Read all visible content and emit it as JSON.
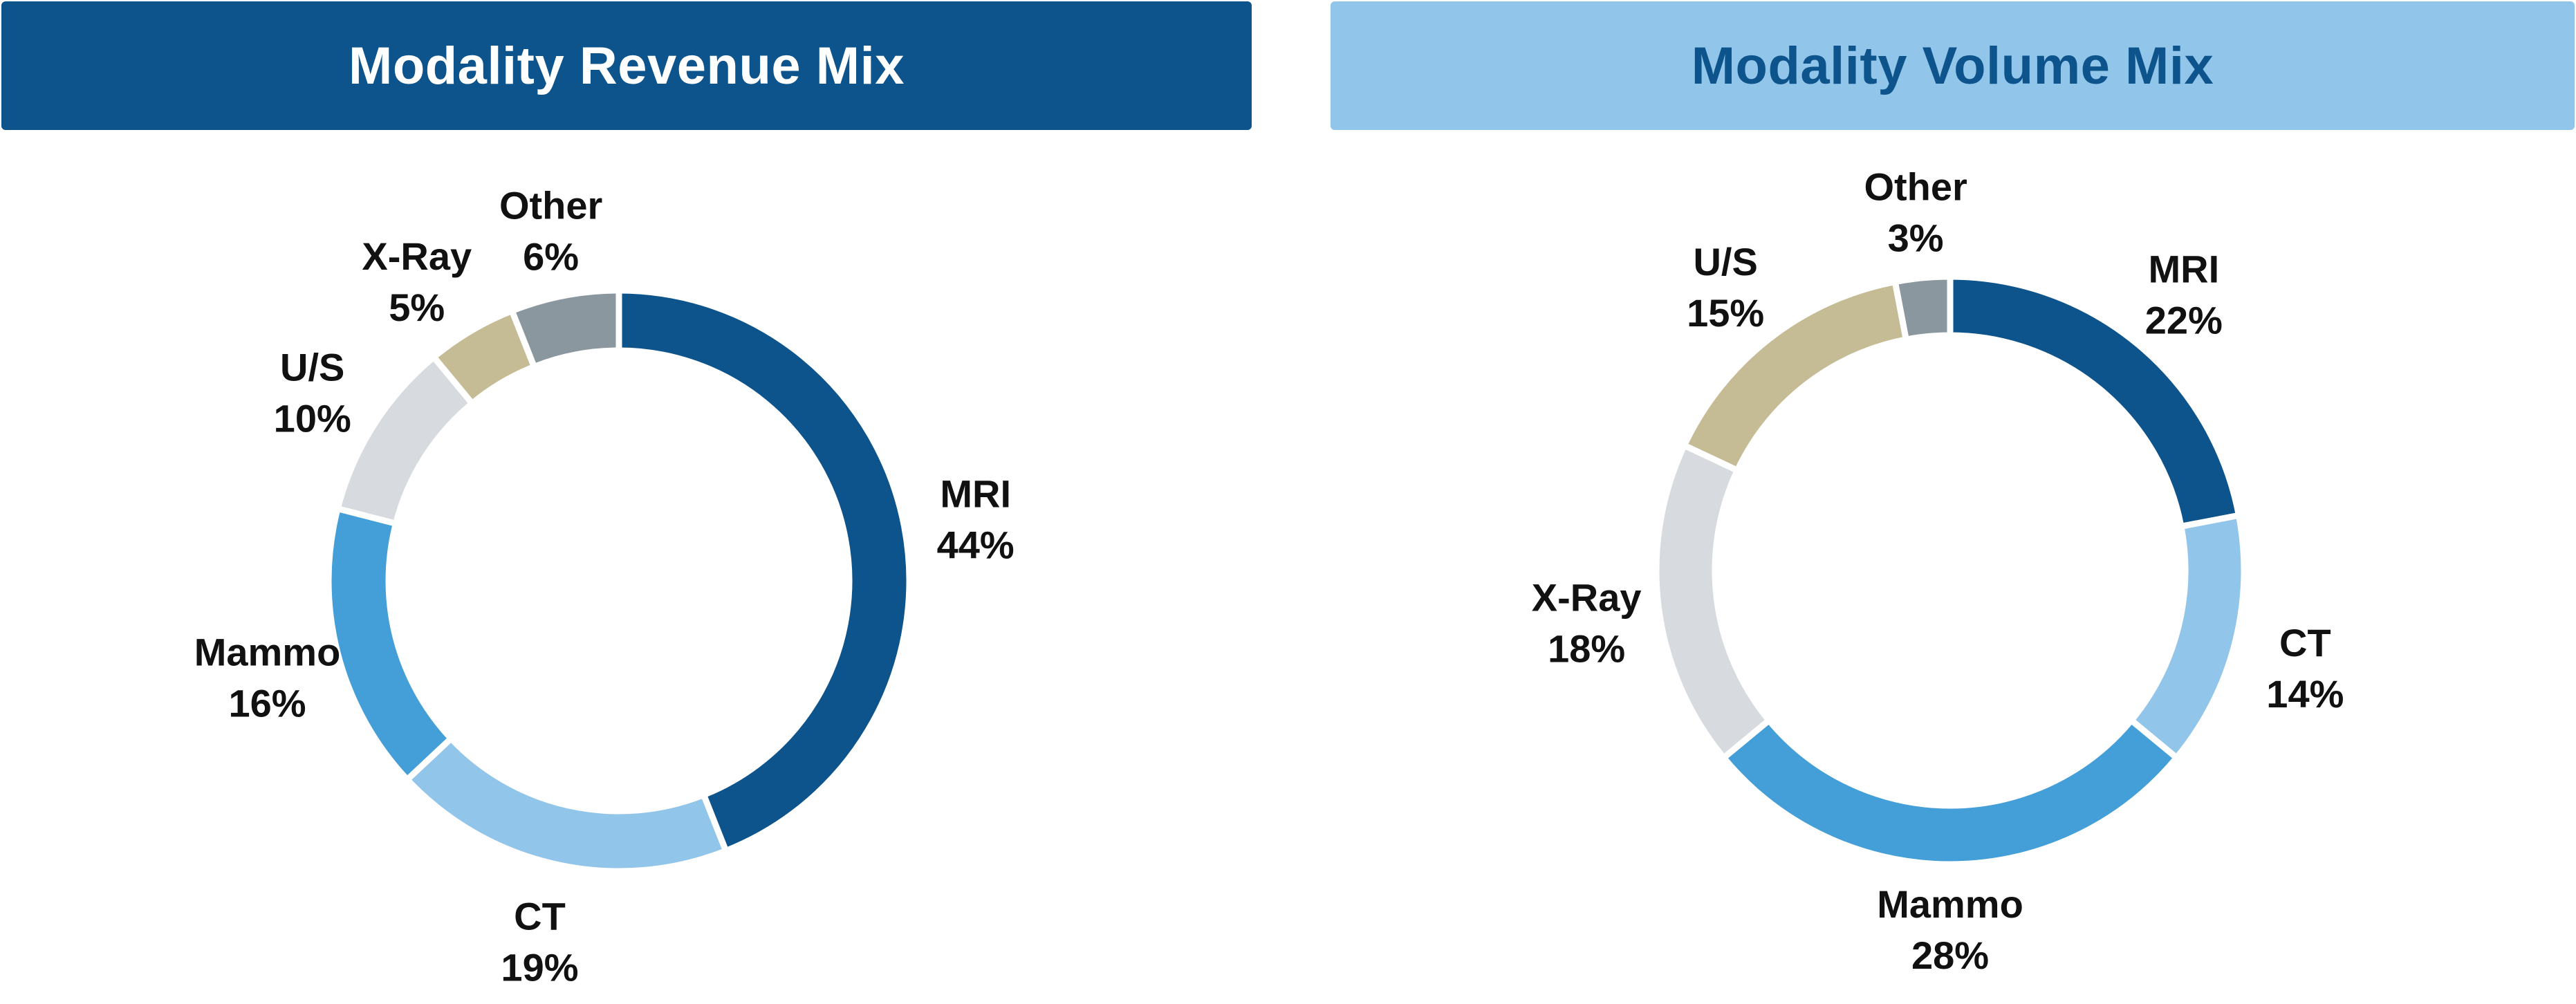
{
  "chart_data": [
    {
      "type": "pie",
      "title": "Modality Revenue Mix",
      "title_style": {
        "background": "#0e548c",
        "color": "#ffffff"
      },
      "donut": true,
      "categories": [
        "MRI",
        "CT",
        "Mammo",
        "U/S",
        "X-Ray",
        "Other"
      ],
      "values": [
        44,
        19,
        16,
        10,
        5,
        6
      ],
      "value_labels": [
        "44%",
        "19%",
        "16%",
        "10%",
        "5%",
        "6%"
      ],
      "colors": [
        "#0e548c",
        "#92c5ea",
        "#449fd8",
        "#d7dbdf",
        "#c5bc96",
        "#8a979e"
      ]
    },
    {
      "type": "pie",
      "title": "Modality Volume Mix",
      "title_style": {
        "background": "#92c5ea",
        "color": "#0e548c"
      },
      "donut": true,
      "categories": [
        "MRI",
        "CT",
        "Mammo",
        "X-Ray",
        "U/S",
        "Other"
      ],
      "values": [
        22,
        14,
        28,
        18,
        15,
        3
      ],
      "value_labels": [
        "22%",
        "14%",
        "28%",
        "18%",
        "15%",
        "3%"
      ],
      "colors": [
        "#0e548c",
        "#92c5ea",
        "#449fd8",
        "#d7dbdf",
        "#c5bc96",
        "#8a979e"
      ]
    }
  ]
}
